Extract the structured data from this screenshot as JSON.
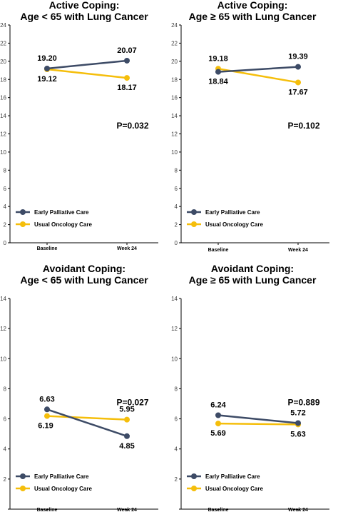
{
  "colors": {
    "early_palliative_care": "#3D4B66",
    "usual_oncology_care": "#F5BE0B",
    "axis": "#000000"
  },
  "chart_data": [
    {
      "type": "line",
      "title": "Active Coping:\nAge < 65 with Lung Cancer",
      "categories": [
        "Baseline",
        "Week 24"
      ],
      "ylim": [
        0,
        24
      ],
      "yticks": [
        "0",
        "2",
        "4",
        "6",
        "8",
        "10",
        "12",
        "14",
        "16",
        "18",
        "20",
        "22",
        "24"
      ],
      "yticks_visible": [
        "0",
        "2",
        "4",
        "6",
        "8",
        "10",
        "12",
        "14",
        "16",
        "18",
        "20",
        "22",
        "24"
      ],
      "legend_position": "bottom-left",
      "series": [
        {
          "name": "Early Palliative Care",
          "values": [
            19.2,
            20.07
          ],
          "labels": [
            "19.20",
            "20.07"
          ]
        },
        {
          "name": "Usual Oncology Care",
          "values": [
            19.12,
            18.17
          ],
          "labels": [
            "19.12",
            "18.17"
          ]
        }
      ],
      "annotation": "P=0.032"
    },
    {
      "type": "line",
      "title": "Active Coping:\nAge ≥ 65 with Lung Cancer",
      "categories": [
        "Baseline",
        "Week 24"
      ],
      "ylim": [
        0,
        24
      ],
      "yticks": [
        "0",
        "2",
        "4",
        "6",
        "8",
        "10",
        "12",
        "14",
        "16",
        "18",
        "20",
        "22",
        "24"
      ],
      "yticks_visible": [
        "0",
        "2",
        "4",
        "6",
        "8",
        "10",
        "12",
        "14",
        "16",
        "18",
        "20",
        "22",
        "24"
      ],
      "legend_position": "bottom-left",
      "series": [
        {
          "name": "Early Palliative Care",
          "values": [
            18.84,
            19.39
          ],
          "labels": [
            "18.84",
            "19.39"
          ]
        },
        {
          "name": "Usual Oncology Care",
          "values": [
            19.18,
            17.67
          ],
          "labels": [
            "19.18",
            "17.67"
          ]
        }
      ],
      "annotation": "P=0.102"
    },
    {
      "type": "line",
      "title": "Avoidant Coping:\nAge < 65 with Lung Cancer",
      "categories": [
        "Baseline",
        "Week 24"
      ],
      "ylim": [
        0,
        14
      ],
      "yticks": [
        "0",
        "2",
        "4",
        "6",
        "8",
        "10",
        "12",
        "14"
      ],
      "yticks_visible": [
        "2",
        "4",
        "6",
        "8",
        "10",
        "12",
        "14"
      ],
      "legend_position": "bottom-left",
      "series": [
        {
          "name": "Early Palliative Care",
          "values": [
            6.63,
            4.85
          ],
          "labels": [
            "6.63",
            "4.85"
          ]
        },
        {
          "name": "Usual Oncology Care",
          "values": [
            6.19,
            5.95
          ],
          "labels": [
            "6.19",
            "5.95"
          ]
        }
      ],
      "annotation": "P=0.027"
    },
    {
      "type": "line",
      "title": "Avoidant Coping:\nAge ≥ 65 with Lung Cancer",
      "categories": [
        "Baseline",
        "Week 24"
      ],
      "ylim": [
        0,
        14
      ],
      "yticks": [
        "0",
        "2",
        "4",
        "6",
        "8",
        "10",
        "12",
        "14"
      ],
      "yticks_visible": [
        "2",
        "4",
        "6",
        "8",
        "10",
        "12",
        "14"
      ],
      "legend_position": "bottom-left",
      "series": [
        {
          "name": "Early Palliative Care",
          "values": [
            6.24,
            5.72
          ],
          "labels": [
            "6.24",
            "5.72"
          ]
        },
        {
          "name": "Usual Oncology Care",
          "values": [
            5.69,
            5.63
          ],
          "labels": [
            "5.69",
            "5.63"
          ]
        }
      ],
      "annotation": "P=0.889"
    }
  ]
}
